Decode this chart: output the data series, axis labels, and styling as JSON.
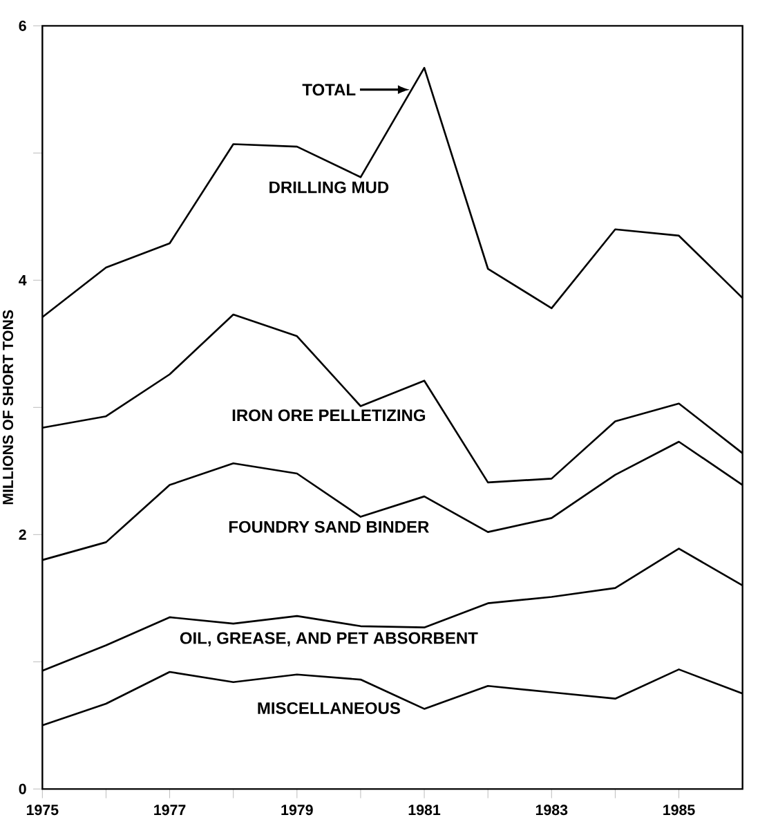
{
  "chart_data": {
    "type": "line",
    "ylabel": "MILLIONS OF SHORT TONS",
    "x": [
      1975,
      1976,
      1977,
      1978,
      1979,
      1980,
      1981,
      1982,
      1983,
      1984,
      1985,
      1986
    ],
    "series": [
      {
        "name": "MISCELLANEOUS",
        "color": "#000000",
        "values": [
          0.5,
          0.67,
          0.92,
          0.84,
          0.9,
          0.86,
          0.63,
          0.81,
          0.76,
          0.71,
          0.94,
          0.75
        ]
      },
      {
        "name": "OIL, GREASE, AND PET ABSORBENT",
        "color": "#000000",
        "values": [
          0.93,
          1.13,
          1.35,
          1.3,
          1.36,
          1.28,
          1.27,
          1.46,
          1.51,
          1.58,
          1.89,
          1.6
        ]
      },
      {
        "name": "FOUNDRY SAND BINDER",
        "color": "#000000",
        "values": [
          1.8,
          1.94,
          2.39,
          2.56,
          2.48,
          2.14,
          2.3,
          2.02,
          2.13,
          2.47,
          2.73,
          2.39
        ]
      },
      {
        "name": "IRON ORE PELLETIZING",
        "color": "#000000",
        "values": [
          2.84,
          2.93,
          3.26,
          3.73,
          3.56,
          3.01,
          3.21,
          2.41,
          2.44,
          2.89,
          3.03,
          2.64
        ]
      },
      {
        "name": "DRILLING MUD",
        "color": "#000000",
        "values": [
          3.71,
          4.1,
          4.29,
          5.07,
          5.05,
          4.81,
          5.67,
          4.09,
          3.78,
          4.4,
          4.35,
          3.86
        ]
      }
    ],
    "annotations": [
      "TOTAL"
    ],
    "xlim": [
      1975,
      1986
    ],
    "xticks": [
      1975,
      {
        "value": 1976,
        "label": null
      },
      1977,
      {
        "value": 1978,
        "label": null
      },
      1979,
      {
        "value": 1980,
        "label": null
      },
      1981,
      {
        "value": 1982,
        "label": null
      },
      1983,
      {
        "value": 1984,
        "label": null
      },
      1985
    ],
    "ylim": [
      0,
      6
    ],
    "yticks": [
      0,
      {
        "value": 1,
        "label": null
      },
      2,
      {
        "value": 3,
        "label": null
      },
      4,
      {
        "value": 5,
        "label": null
      },
      6
    ],
    "grid": false,
    "legend": false,
    "marker": "none",
    "line_style": "solid"
  }
}
